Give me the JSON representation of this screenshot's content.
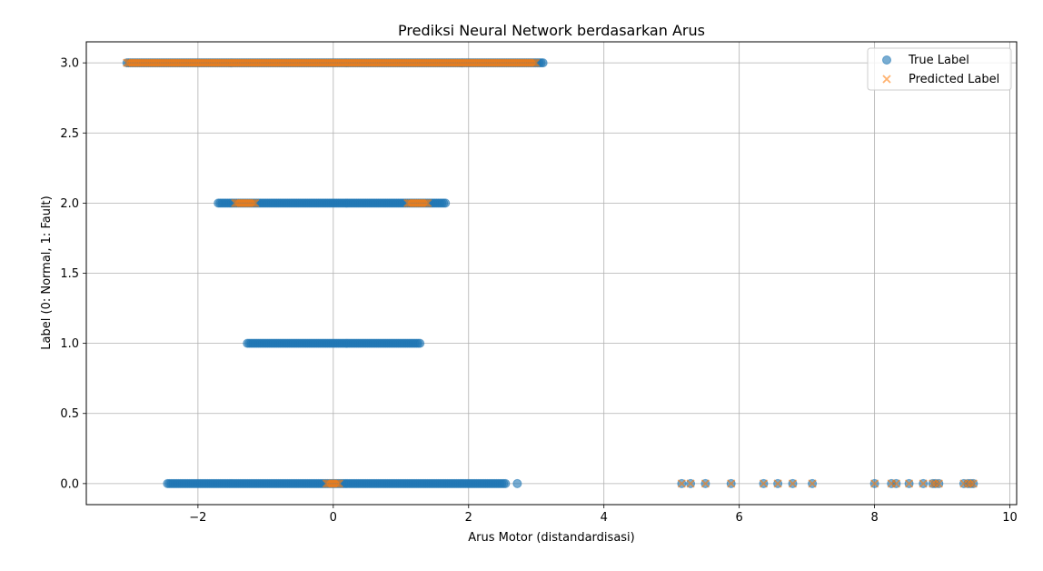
{
  "chart_data": {
    "type": "scatter",
    "title": "Prediksi Neural Network berdasarkan Arus",
    "xlabel": "Arus Motor (distandardisasi)",
    "ylabel": "Label (0: Normal, 1: Fault)",
    "xlim": [
      -3.65,
      10.1
    ],
    "ylim": [
      -0.15,
      3.15
    ],
    "xticks": [
      -2,
      0,
      2,
      4,
      6,
      8,
      10
    ],
    "xtick_labels": [
      "−2",
      "0",
      "2",
      "4",
      "6",
      "8",
      "10"
    ],
    "yticks": [
      0.0,
      0.5,
      1.0,
      1.5,
      2.0,
      2.5,
      3.0
    ],
    "ytick_labels": [
      "0.0",
      "0.5",
      "1.0",
      "1.5",
      "2.0",
      "2.5",
      "3.0"
    ],
    "grid": true,
    "legend_position": "top-right",
    "series": [
      {
        "name": "True Label",
        "marker": "circle",
        "color": "#1f77b4",
        "clusters": [
          {
            "y": 3,
            "x_min": -3.05,
            "x_max": 3.1
          },
          {
            "y": 2,
            "x_min": -1.7,
            "x_max": 1.68
          },
          {
            "y": 1,
            "x_min": -1.27,
            "x_max": 1.3
          },
          {
            "y": 0,
            "x_min": -2.45,
            "x_max": 2.55
          }
        ],
        "points": [
          {
            "x": 2.72,
            "y": 0
          },
          {
            "x": 5.15,
            "y": 0
          },
          {
            "x": 5.28,
            "y": 0
          },
          {
            "x": 5.5,
            "y": 0
          },
          {
            "x": 5.88,
            "y": 0
          },
          {
            "x": 6.36,
            "y": 0
          },
          {
            "x": 6.57,
            "y": 0
          },
          {
            "x": 6.79,
            "y": 0
          },
          {
            "x": 7.08,
            "y": 0
          },
          {
            "x": 8.0,
            "y": 0
          },
          {
            "x": 8.25,
            "y": 0
          },
          {
            "x": 8.32,
            "y": 0
          },
          {
            "x": 8.51,
            "y": 0
          },
          {
            "x": 8.72,
            "y": 0
          },
          {
            "x": 8.86,
            "y": 0
          },
          {
            "x": 8.9,
            "y": 0
          },
          {
            "x": 8.95,
            "y": 0
          },
          {
            "x": 9.32,
            "y": 0
          },
          {
            "x": 9.38,
            "y": 0
          },
          {
            "x": 9.42,
            "y": 0
          },
          {
            "x": 9.46,
            "y": 0
          }
        ]
      },
      {
        "name": "Predicted Label",
        "marker": "x",
        "color": "#ff7f0e",
        "clusters": [
          {
            "y": 3,
            "x_min": -3.05,
            "x_max": 3.0
          },
          {
            "y": 2,
            "x_min": -1.45,
            "x_max": -1.15
          },
          {
            "y": 2,
            "x_min": 1.1,
            "x_max": 1.42
          },
          {
            "y": 0,
            "x_min": -0.1,
            "x_max": 0.1
          }
        ],
        "points": [
          {
            "x": 5.15,
            "y": 0
          },
          {
            "x": 5.28,
            "y": 0
          },
          {
            "x": 5.5,
            "y": 0
          },
          {
            "x": 5.88,
            "y": 0
          },
          {
            "x": 6.36,
            "y": 0
          },
          {
            "x": 6.57,
            "y": 0
          },
          {
            "x": 6.79,
            "y": 0
          },
          {
            "x": 7.08,
            "y": 0
          },
          {
            "x": 8.0,
            "y": 0
          },
          {
            "x": 8.25,
            "y": 0
          },
          {
            "x": 8.32,
            "y": 0
          },
          {
            "x": 8.51,
            "y": 0
          },
          {
            "x": 8.72,
            "y": 0
          },
          {
            "x": 8.86,
            "y": 0
          },
          {
            "x": 8.9,
            "y": 0
          },
          {
            "x": 8.95,
            "y": 0
          },
          {
            "x": 9.32,
            "y": 0
          },
          {
            "x": 9.38,
            "y": 0
          },
          {
            "x": 9.42,
            "y": 0
          },
          {
            "x": 9.46,
            "y": 0
          }
        ]
      }
    ]
  }
}
